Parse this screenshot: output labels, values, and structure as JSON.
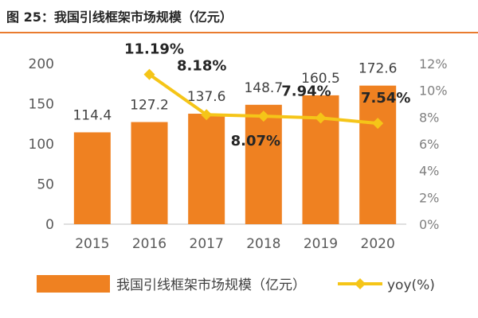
{
  "figure": {
    "title": "图 25：我国引线框架市场规模（亿元）"
  },
  "colors": {
    "bar": "#ef8121",
    "line": "#f5c518",
    "title_rule": "#e97b2f",
    "axis": "#bfbfbf"
  },
  "chart_data": {
    "type": "bar",
    "categories": [
      "2015",
      "2016",
      "2017",
      "2018",
      "2019",
      "2020"
    ],
    "series": [
      {
        "name": "我国引线框架市场规模（亿元）",
        "type": "bar",
        "axis": "left",
        "values": [
          114.4,
          127.2,
          137.6,
          148.7,
          160.5,
          172.6
        ],
        "labels": [
          "114.4",
          "127.2",
          "137.6",
          "148.7",
          "160.5",
          "172.6"
        ]
      },
      {
        "name": "yoy(%)",
        "type": "line",
        "axis": "right",
        "values": [
          null,
          11.19,
          8.18,
          8.07,
          7.94,
          7.54
        ],
        "labels": [
          "",
          "11.19%",
          "8.18%",
          "8.07%",
          "7.94%",
          "7.54%"
        ]
      }
    ],
    "y_left": {
      "ylim": [
        0,
        200
      ],
      "ticks": [
        0,
        50,
        100,
        150,
        200
      ],
      "tick_labels": [
        "0",
        "50",
        "100",
        "150",
        "200"
      ]
    },
    "y_right": {
      "ylim": [
        0,
        12
      ],
      "ticks": [
        0,
        2,
        4,
        6,
        8,
        10,
        12
      ],
      "tick_labels": [
        "0%",
        "2%",
        "4%",
        "6%",
        "8%",
        "10%",
        "12%"
      ]
    },
    "grid": false,
    "legend": "bottom"
  }
}
